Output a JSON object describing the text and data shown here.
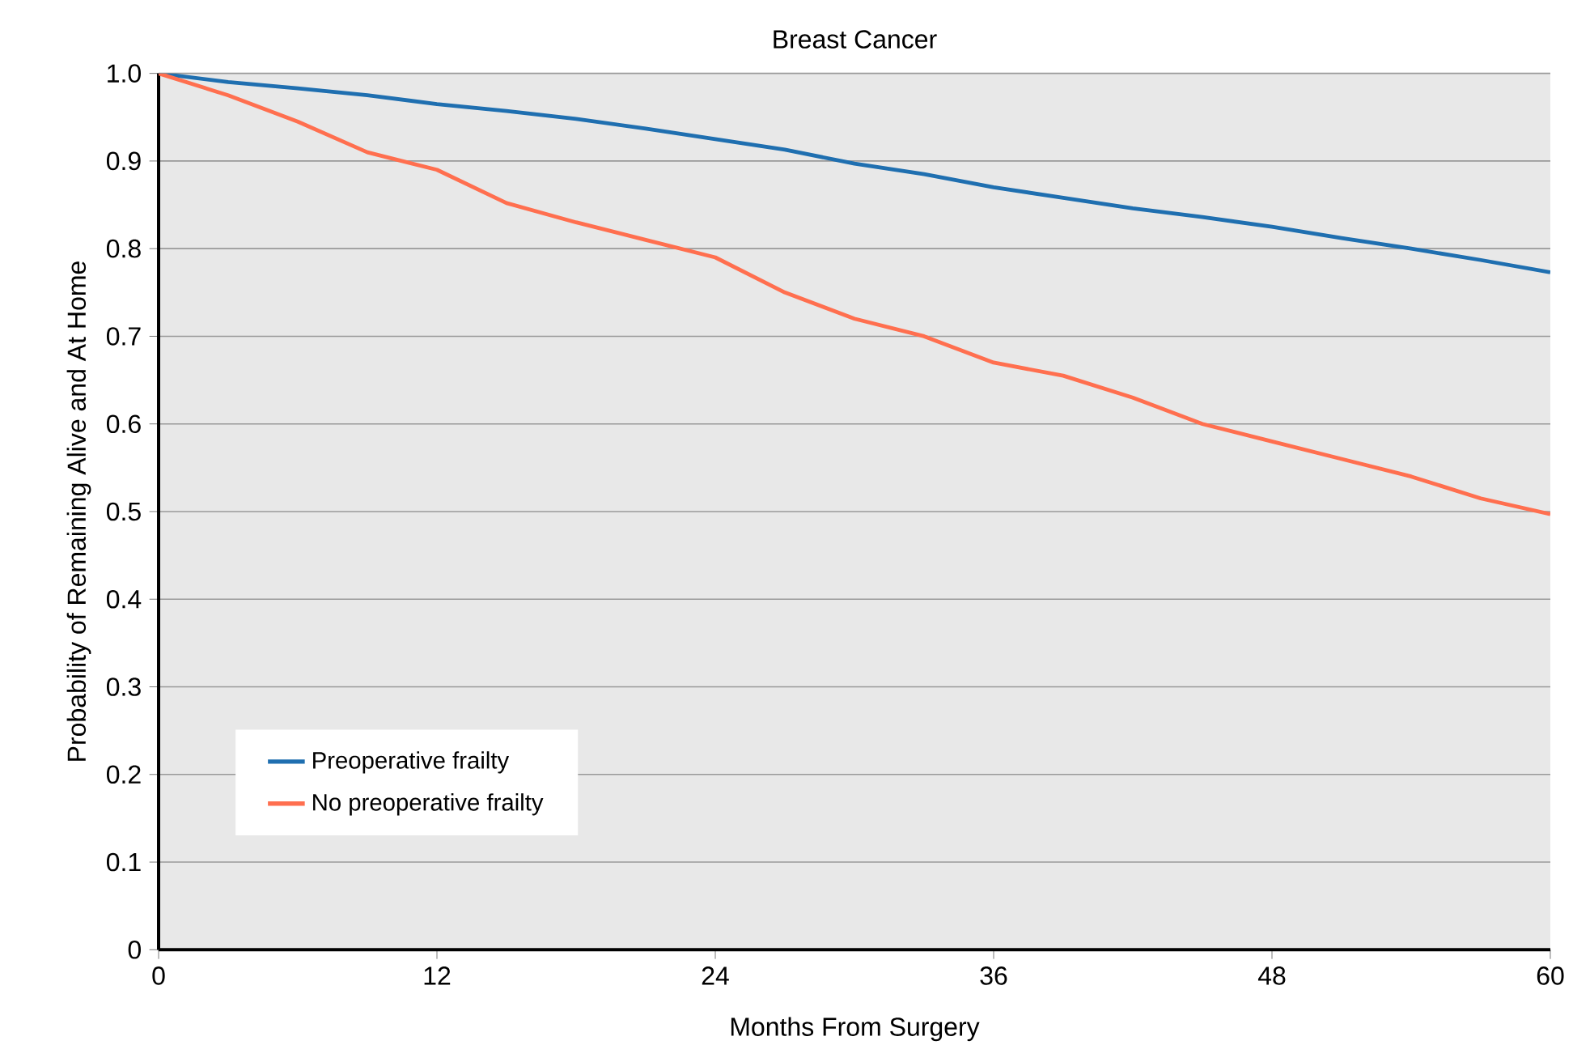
{
  "chart_data": {
    "type": "line",
    "title": "Breast Cancer",
    "xlabel": "Months From Surgery",
    "ylabel": "Probability of Remaining Alive and At Home",
    "xlim": [
      0,
      60
    ],
    "ylim": [
      0,
      1
    ],
    "xticks": [
      0,
      12,
      24,
      36,
      48,
      60
    ],
    "yticks": [
      0,
      0.1,
      0.2,
      0.3,
      0.4,
      0.5,
      0.6,
      0.7,
      0.8,
      0.9,
      {
        "value": 1,
        "label": "1.0"
      }
    ],
    "grid": "y",
    "legend": "bottom left",
    "marker": "none",
    "line_style": "solid",
    "series": [
      {
        "name": "Preoperative frailty",
        "color": "#1f6fb0",
        "x": [
          0,
          3,
          6,
          9,
          12,
          15,
          18,
          21,
          24,
          27,
          30,
          33,
          36,
          39,
          42,
          45,
          48,
          51,
          54,
          57,
          60
        ],
        "values": [
          1.0,
          0.99,
          0.983,
          0.975,
          0.965,
          0.957,
          0.948,
          0.937,
          0.925,
          0.913,
          0.897,
          0.885,
          0.87,
          0.858,
          0.846,
          0.836,
          0.825,
          0.812,
          0.8,
          0.787,
          0.773
        ]
      },
      {
        "name": "No preoperative frailty",
        "color": "#ff6f4f",
        "x": [
          0,
          3,
          6,
          9,
          12,
          15,
          18,
          21,
          24,
          27,
          30,
          33,
          36,
          39,
          42,
          45,
          48,
          51,
          54,
          57,
          60
        ],
        "values": [
          1.0,
          0.975,
          0.945,
          0.91,
          0.89,
          0.852,
          0.83,
          0.81,
          0.79,
          0.75,
          0.72,
          0.7,
          0.67,
          0.655,
          0.63,
          0.6,
          0.58,
          0.56,
          0.54,
          0.515,
          0.497
        ]
      }
    ]
  }
}
